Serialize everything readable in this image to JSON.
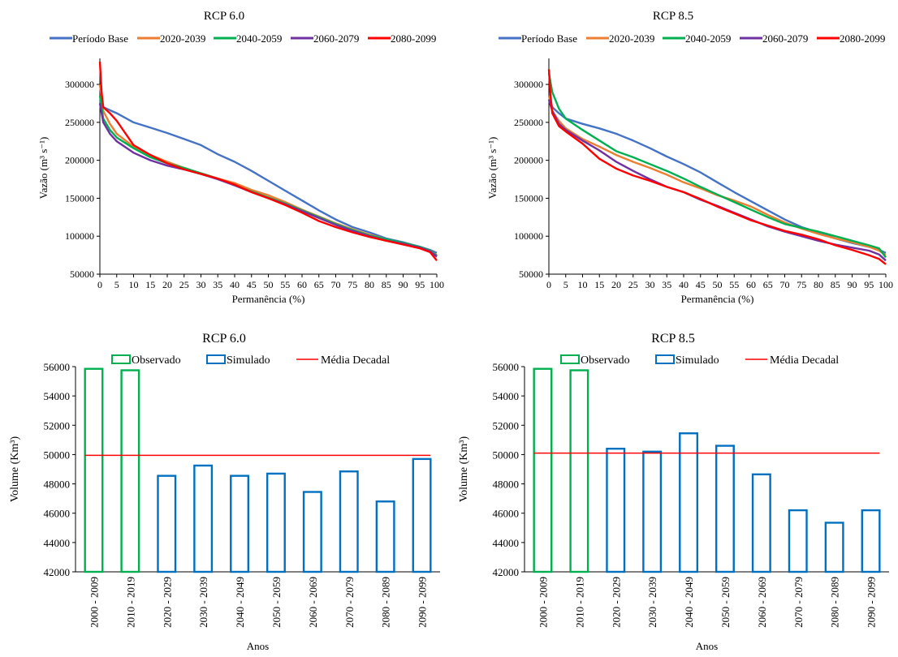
{
  "chart_data": [
    {
      "type": "line",
      "title": "RCP 6.0",
      "xlabel": "Permanência (%)",
      "ylabel": "Vazão (m³ s⁻¹)",
      "xlim": [
        0,
        100
      ],
      "ylim": [
        50000,
        330000
      ],
      "xticks": [
        0,
        5,
        10,
        15,
        20,
        25,
        30,
        35,
        40,
        45,
        50,
        55,
        60,
        65,
        70,
        75,
        80,
        85,
        90,
        95,
        100
      ],
      "yticks": [
        50000,
        100000,
        150000,
        200000,
        250000,
        300000
      ],
      "legend_position": "top",
      "grid": false,
      "series": [
        {
          "name": "Período Base",
          "color": "#4472C4",
          "x": [
            0,
            1,
            3,
            5,
            10,
            15,
            20,
            25,
            30,
            35,
            40,
            45,
            50,
            55,
            60,
            65,
            70,
            75,
            80,
            85,
            90,
            95,
            98,
            100
          ],
          "y": [
            280000,
            270000,
            266000,
            262000,
            250000,
            243000,
            236000,
            228000,
            220000,
            208000,
            198000,
            186000,
            173000,
            160000,
            147000,
            134000,
            122000,
            112000,
            105000,
            97000,
            92000,
            86000,
            82000,
            78000
          ]
        },
        {
          "name": "2020-2039",
          "color": "#ED7D31",
          "x": [
            0,
            1,
            3,
            5,
            10,
            15,
            20,
            25,
            30,
            35,
            40,
            45,
            50,
            55,
            60,
            65,
            70,
            75,
            80,
            85,
            90,
            95,
            98,
            100
          ],
          "y": [
            300000,
            265000,
            248000,
            235000,
            218000,
            207000,
            198000,
            190000,
            183000,
            176000,
            170000,
            161000,
            154000,
            145000,
            135000,
            126000,
            117000,
            109000,
            102000,
            96000,
            91000,
            86000,
            81000,
            75000
          ]
        },
        {
          "name": "2040-2059",
          "color": "#00B050",
          "x": [
            0,
            1,
            3,
            5,
            10,
            15,
            20,
            25,
            30,
            35,
            40,
            45,
            50,
            55,
            60,
            65,
            70,
            75,
            80,
            85,
            90,
            95,
            98,
            100
          ],
          "y": [
            285000,
            255000,
            240000,
            230000,
            216000,
            204000,
            196000,
            190000,
            183000,
            176000,
            167000,
            159000,
            151000,
            143000,
            134000,
            125000,
            116000,
            108000,
            101000,
            96000,
            91000,
            86000,
            81000,
            74000
          ]
        },
        {
          "name": "2060-2079",
          "color": "#7030A0",
          "x": [
            0,
            1,
            3,
            5,
            10,
            15,
            20,
            25,
            30,
            35,
            40,
            45,
            50,
            55,
            60,
            65,
            70,
            75,
            80,
            85,
            90,
            95,
            98,
            100
          ],
          "y": [
            275000,
            250000,
            235000,
            225000,
            210000,
            200000,
            193000,
            188000,
            182000,
            175000,
            167000,
            158000,
            150000,
            142000,
            133000,
            124000,
            115000,
            107000,
            100000,
            94000,
            90000,
            85000,
            80000,
            73000
          ]
        },
        {
          "name": "2080-2099",
          "color": "#FF0000",
          "x": [
            0,
            0.5,
            1,
            3,
            5,
            10,
            15,
            20,
            25,
            30,
            35,
            40,
            45,
            50,
            55,
            60,
            65,
            70,
            75,
            80,
            85,
            90,
            95,
            98,
            100
          ],
          "y": [
            330000,
            290000,
            270000,
            262000,
            252000,
            220000,
            207000,
            196000,
            188000,
            182000,
            176000,
            168000,
            158000,
            150000,
            141000,
            131000,
            120000,
            112000,
            105000,
            99000,
            94000,
            89000,
            84000,
            79000,
            68000
          ]
        }
      ]
    },
    {
      "type": "line",
      "title": "RCP 8.5",
      "xlabel": "Permanência (%)",
      "ylabel": "Vazão (m³ s⁻¹)",
      "xlim": [
        0,
        100
      ],
      "ylim": [
        50000,
        330000
      ],
      "xticks": [
        0,
        5,
        10,
        15,
        20,
        25,
        30,
        35,
        40,
        45,
        50,
        55,
        60,
        65,
        70,
        75,
        80,
        85,
        90,
        95,
        100
      ],
      "yticks": [
        50000,
        100000,
        150000,
        200000,
        250000,
        300000
      ],
      "legend_position": "top",
      "grid": false,
      "series": [
        {
          "name": "Período Base",
          "color": "#4472C4",
          "x": [
            0,
            1,
            3,
            5,
            10,
            15,
            20,
            25,
            30,
            35,
            40,
            45,
            50,
            55,
            60,
            65,
            70,
            75,
            80,
            85,
            90,
            95,
            98,
            100
          ],
          "y": [
            285000,
            270000,
            262000,
            255000,
            248000,
            242000,
            235000,
            226000,
            216000,
            205000,
            195000,
            184000,
            171000,
            158000,
            146000,
            134000,
            122000,
            112000,
            105000,
            97000,
            91000,
            86000,
            82000,
            78000
          ]
        },
        {
          "name": "2020-2039",
          "color": "#ED7D31",
          "x": [
            0,
            1,
            3,
            5,
            10,
            15,
            20,
            25,
            30,
            35,
            40,
            45,
            50,
            55,
            60,
            65,
            70,
            75,
            80,
            85,
            90,
            95,
            98,
            100
          ],
          "y": [
            285000,
            265000,
            252000,
            242000,
            228000,
            218000,
            207000,
            198000,
            190000,
            181000,
            171000,
            163000,
            154000,
            147000,
            139000,
            128000,
            118000,
            110000,
            103000,
            97000,
            92000,
            86000,
            81000,
            75000
          ]
        },
        {
          "name": "2040-2059",
          "color": "#00B050",
          "x": [
            0,
            1,
            3,
            5,
            10,
            15,
            20,
            25,
            30,
            35,
            40,
            45,
            50,
            55,
            60,
            65,
            70,
            75,
            80,
            85,
            90,
            95,
            98,
            100
          ],
          "y": [
            315000,
            290000,
            268000,
            255000,
            240000,
            226000,
            212000,
            204000,
            195000,
            186000,
            176000,
            165000,
            155000,
            145000,
            135000,
            125000,
            116000,
            111000,
            106000,
            100000,
            94000,
            88000,
            84000,
            72000
          ]
        },
        {
          "name": "2060-2079",
          "color": "#7030A0",
          "x": [
            0,
            1,
            3,
            5,
            10,
            15,
            20,
            25,
            30,
            35,
            40,
            45,
            50,
            55,
            60,
            65,
            70,
            75,
            80,
            85,
            90,
            95,
            98,
            100
          ],
          "y": [
            280000,
            265000,
            248000,
            240000,
            226000,
            213000,
            198000,
            186000,
            175000,
            165000,
            158000,
            148000,
            140000,
            131000,
            122000,
            113000,
            106000,
            100000,
            94000,
            89000,
            85000,
            81000,
            76000,
            68000
          ]
        },
        {
          "name": "2080-2099",
          "color": "#FF0000",
          "x": [
            0,
            0.5,
            1,
            3,
            5,
            10,
            15,
            20,
            25,
            30,
            35,
            40,
            45,
            50,
            55,
            60,
            65,
            70,
            75,
            80,
            85,
            90,
            95,
            98,
            100
          ],
          "y": [
            320000,
            285000,
            262000,
            245000,
            238000,
            222000,
            202000,
            189000,
            180000,
            173000,
            165000,
            158000,
            149000,
            139000,
            130000,
            121000,
            114000,
            107000,
            102000,
            96000,
            88000,
            82000,
            75000,
            70000,
            63000
          ]
        }
      ]
    },
    {
      "type": "bar",
      "title": "RCP 6.0",
      "xlabel": "Anos",
      "ylabel": "Volume (Km³)",
      "ylim": [
        42000,
        56000
      ],
      "yticks": [
        42000,
        44000,
        46000,
        48000,
        50000,
        52000,
        54000,
        56000
      ],
      "legend_position": "top",
      "grid": false,
      "categories": [
        "2000 - 2009",
        "2010 - 2019",
        "2020 - 2029",
        "2030 - 2039",
        "2040 - 2049",
        "2050 - 2059",
        "2060 - 2069",
        "2070 - 2079",
        "2080 - 2089",
        "2090 - 2099"
      ],
      "legend": [
        "Observado",
        "Simulado",
        "Média Decadal"
      ],
      "series": [
        {
          "name": "Observado",
          "color": "#00B050",
          "values": [
            55850,
            55750,
            null,
            null,
            null,
            null,
            null,
            null,
            null,
            null
          ]
        },
        {
          "name": "Simulado",
          "color": "#0070C0",
          "values": [
            null,
            null,
            48550,
            49250,
            48550,
            48700,
            47450,
            48850,
            46800,
            49700
          ]
        }
      ],
      "reference_line": {
        "name": "Média Decadal",
        "color": "#FF0000",
        "value": 49950
      }
    },
    {
      "type": "bar",
      "title": "RCP 8.5",
      "xlabel": "Anos",
      "ylabel": "Volume (Km³)",
      "ylim": [
        42000,
        56000
      ],
      "yticks": [
        42000,
        44000,
        46000,
        48000,
        50000,
        52000,
        54000,
        56000
      ],
      "legend_position": "top",
      "grid": false,
      "categories": [
        "2000 - 2009",
        "2010 - 2019",
        "2020 - 2029",
        "2030 - 2039",
        "2040 - 2049",
        "2050 - 2059",
        "2060 - 2069",
        "2070 - 2079",
        "2080 - 2089",
        "2090 - 2099"
      ],
      "legend": [
        "Observado",
        "Simulado",
        "Média Decadal"
      ],
      "series": [
        {
          "name": "Observado",
          "color": "#00B050",
          "values": [
            55850,
            55750,
            null,
            null,
            null,
            null,
            null,
            null,
            null,
            null
          ]
        },
        {
          "name": "Simulado",
          "color": "#0070C0",
          "values": [
            null,
            null,
            50400,
            50200,
            51450,
            50600,
            48650,
            46200,
            45350,
            46200
          ]
        }
      ],
      "reference_line": {
        "name": "Média Decadal",
        "color": "#FF0000",
        "value": 50100
      }
    }
  ]
}
